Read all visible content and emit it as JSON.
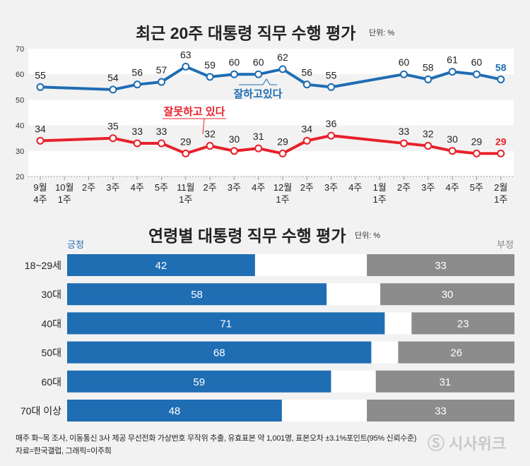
{
  "chart_data": [
    {
      "type": "line",
      "title": "최근 20주 대통령 직무 수행 평가",
      "unit": "단위: %",
      "categories": [
        "9월\n4주",
        "10월\n1주",
        "2주",
        "3주",
        "4주",
        "5주",
        "11월\n1주",
        "2주",
        "3주",
        "4주",
        "12월\n1주",
        "2주",
        "3주",
        "4주",
        "1월\n1주",
        "2주",
        "3주",
        "4주",
        "5주",
        "2월\n1주"
      ],
      "ylim": [
        20,
        70
      ],
      "yticks": [
        20,
        30,
        40,
        50,
        60,
        70
      ],
      "series": [
        {
          "name": "잘하고있다",
          "color": "#1f6db3",
          "values": [
            55,
            null,
            null,
            54,
            56,
            57,
            63,
            59,
            60,
            60,
            62,
            56,
            55,
            null,
            null,
            60,
            58,
            61,
            60,
            58
          ]
        },
        {
          "name": "잘못하고 있다",
          "color": "#e8202a",
          "values": [
            34,
            null,
            null,
            35,
            33,
            33,
            29,
            32,
            30,
            31,
            29,
            34,
            36,
            null,
            null,
            33,
            32,
            30,
            29,
            29
          ]
        }
      ]
    },
    {
      "type": "bar",
      "title": "연령별 대통령 직무 수행 평가",
      "unit": "단위: %",
      "positive_label": "긍정",
      "negative_label": "부정",
      "categories": [
        "18~29세",
        "30대",
        "40대",
        "50대",
        "60대",
        "70대 이상"
      ],
      "series": [
        {
          "name": "긍정",
          "color": "#1f6db3",
          "values": [
            42,
            58,
            71,
            68,
            59,
            48
          ]
        },
        {
          "name": "부정",
          "color": "#8c8c8c",
          "values": [
            33,
            30,
            23,
            26,
            31,
            33
          ]
        }
      ]
    }
  ],
  "footer": {
    "line1": "매주 화~목 조사, 이동통신 3사 제공 무선전화 가상번호 무작위 추출, 유효표본 약 1,001명, 표본오차 ±3.1%포인트(95% 신뢰수준)",
    "line2": "자료=한국갤럽, 그래픽=이주희"
  },
  "logo": "시사위크"
}
